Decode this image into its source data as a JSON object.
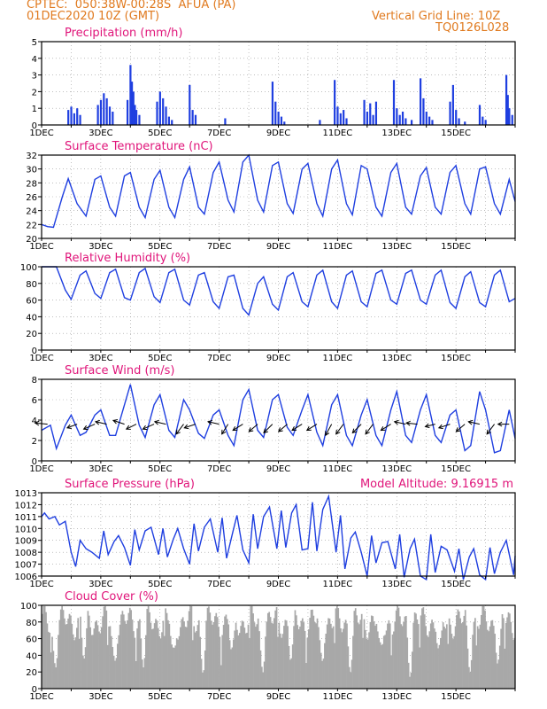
{
  "header": {
    "line1_left": "CPTEC:  050:38W-00:28S  AFUA (PA)",
    "line2_left": "01DEC2020 10Z (GMT)",
    "line1_right": "Vertical Grid Line: 10Z",
    "line2_right": "TQ0126L028"
  },
  "colors": {
    "header": "#e07a1f",
    "title": "#e0157a",
    "series": "#1f3fe0",
    "cloud": "#a8a8a8"
  },
  "x_ticks": [
    "1DEC",
    "3DEC",
    "5DEC",
    "7DEC",
    "9DEC",
    "11DEC",
    "13DEC",
    "15DEC"
  ],
  "chart_data": [
    {
      "id": "precip",
      "type": "bar",
      "title": "Precipitation (mm/h)",
      "ylim": [
        0,
        5
      ],
      "yticks": [
        0,
        1,
        2,
        3,
        4,
        5
      ],
      "note": "hourly spikes, x in days since 1DEC 10Z",
      "x": [
        0.9,
        1.0,
        1.1,
        1.2,
        1.3,
        1.9,
        2.0,
        2.1,
        2.2,
        2.3,
        2.4,
        2.9,
        3.0,
        3.05,
        3.1,
        3.15,
        3.2,
        3.3,
        3.9,
        4.0,
        4.1,
        4.2,
        4.3,
        4.4,
        5.0,
        5.1,
        5.2,
        6.2,
        7.8,
        7.9,
        8.0,
        8.1,
        8.2,
        9.4,
        9.9,
        10.0,
        10.1,
        10.2,
        10.3,
        10.9,
        11.0,
        11.1,
        11.2,
        11.3,
        11.9,
        12.0,
        12.1,
        12.2,
        12.3,
        12.5,
        12.8,
        12.9,
        13.0,
        13.1,
        13.2,
        13.8,
        13.9,
        14.0,
        14.1,
        14.3,
        14.8,
        14.9,
        15.0,
        15.7,
        15.75,
        15.8,
        15.9
      ],
      "values": [
        0.9,
        1.1,
        0.7,
        1.0,
        0.6,
        1.2,
        1.5,
        1.9,
        1.6,
        1.1,
        0.8,
        1.5,
        3.6,
        2.6,
        2.0,
        1.2,
        0.9,
        0.6,
        1.4,
        2.0,
        1.6,
        1.1,
        0.5,
        0.3,
        2.4,
        0.9,
        0.6,
        0.4,
        2.6,
        1.4,
        0.8,
        0.5,
        0.2,
        0.3,
        2.7,
        1.1,
        0.7,
        0.9,
        0.4,
        1.5,
        0.8,
        1.3,
        0.6,
        1.4,
        2.7,
        1.0,
        0.6,
        0.8,
        0.4,
        0.3,
        2.8,
        1.6,
        0.8,
        0.5,
        0.3,
        1.4,
        2.4,
        0.9,
        0.4,
        0.2,
        1.2,
        0.5,
        0.3,
        3.0,
        1.8,
        1.0,
        0.6
      ]
    },
    {
      "id": "temp",
      "type": "line",
      "title": "Surface Temperature (nC)",
      "ylim": [
        20,
        32
      ],
      "yticks": [
        20,
        22,
        24,
        26,
        28,
        30,
        32
      ],
      "x": [
        0.0,
        0.2,
        0.4,
        0.7,
        0.9,
        1.2,
        1.5,
        1.8,
        2.0,
        2.3,
        2.5,
        2.8,
        3.0,
        3.3,
        3.5,
        3.8,
        4.0,
        4.3,
        4.5,
        4.8,
        5.0,
        5.3,
        5.5,
        5.8,
        6.0,
        6.3,
        6.5,
        6.8,
        7.0,
        7.3,
        7.5,
        7.8,
        8.0,
        8.3,
        8.5,
        8.8,
        9.0,
        9.3,
        9.5,
        9.8,
        10.0,
        10.3,
        10.5,
        10.8,
        11.0,
        11.3,
        11.5,
        11.8,
        12.0,
        12.3,
        12.5,
        12.8,
        13.0,
        13.3,
        13.5,
        13.8,
        14.0,
        14.3,
        14.5,
        14.8,
        15.0,
        15.3,
        15.5,
        15.8,
        16.0
      ],
      "values": [
        22.0,
        21.7,
        21.6,
        26.0,
        28.6,
        25.0,
        23.2,
        28.5,
        29.0,
        24.5,
        23.2,
        29.0,
        29.5,
        24.5,
        23.0,
        28.5,
        29.8,
        24.5,
        23.0,
        28.5,
        30.3,
        24.5,
        23.5,
        29.5,
        31.0,
        25.5,
        23.8,
        31.0,
        32.0,
        25.5,
        23.8,
        30.5,
        31.0,
        25.0,
        23.6,
        30.0,
        30.8,
        25.0,
        23.2,
        30.0,
        31.3,
        25.0,
        23.4,
        30.5,
        30.0,
        24.5,
        23.2,
        29.5,
        30.8,
        24.5,
        23.5,
        29.0,
        30.2,
        24.5,
        23.5,
        29.5,
        30.5,
        25.0,
        23.5,
        30.0,
        30.3,
        25.0,
        23.5,
        28.5,
        25.3
      ]
    },
    {
      "id": "rh",
      "type": "line",
      "title": "Relative Humidity (%)",
      "ylim": [
        0,
        100
      ],
      "yticks": [
        0,
        20,
        40,
        60,
        80,
        100
      ],
      "x": [
        0.0,
        0.3,
        0.5,
        0.8,
        1.0,
        1.3,
        1.5,
        1.8,
        2.0,
        2.3,
        2.5,
        2.8,
        3.0,
        3.3,
        3.5,
        3.8,
        4.0,
        4.3,
        4.5,
        4.8,
        5.0,
        5.3,
        5.5,
        5.8,
        6.0,
        6.3,
        6.5,
        6.8,
        7.0,
        7.3,
        7.5,
        7.8,
        8.0,
        8.3,
        8.5,
        8.8,
        9.0,
        9.3,
        9.5,
        9.8,
        10.0,
        10.3,
        10.5,
        10.8,
        11.0,
        11.3,
        11.5,
        11.8,
        12.0,
        12.3,
        12.5,
        12.8,
        13.0,
        13.3,
        13.5,
        13.8,
        14.0,
        14.3,
        14.5,
        14.8,
        15.0,
        15.3,
        15.5,
        15.8,
        16.0
      ],
      "values": [
        100,
        100,
        100,
        72,
        61,
        90,
        95,
        68,
        62,
        93,
        97,
        63,
        60,
        93,
        98,
        64,
        57,
        93,
        97,
        60,
        54,
        90,
        93,
        58,
        50,
        88,
        90,
        50,
        42,
        80,
        88,
        55,
        48,
        88,
        93,
        58,
        52,
        90,
        96,
        58,
        50,
        90,
        95,
        58,
        52,
        92,
        96,
        60,
        55,
        92,
        96,
        60,
        55,
        90,
        96,
        57,
        50,
        88,
        94,
        57,
        52,
        90,
        96,
        58,
        62
      ]
    },
    {
      "id": "wind",
      "type": "line",
      "title": "Surface Wind (m/s)",
      "ylim": [
        0,
        8
      ],
      "yticks": [
        0,
        2,
        4,
        6,
        8
      ],
      "x": [
        0.0,
        0.3,
        0.5,
        0.8,
        1.0,
        1.3,
        1.5,
        1.8,
        2.0,
        2.3,
        2.5,
        2.8,
        3.0,
        3.3,
        3.5,
        3.8,
        4.0,
        4.3,
        4.5,
        4.8,
        5.0,
        5.3,
        5.5,
        5.8,
        6.0,
        6.3,
        6.5,
        6.8,
        7.0,
        7.3,
        7.5,
        7.8,
        8.0,
        8.3,
        8.5,
        8.8,
        9.0,
        9.3,
        9.5,
        9.8,
        10.0,
        10.3,
        10.5,
        10.8,
        11.0,
        11.3,
        11.5,
        11.8,
        12.0,
        12.3,
        12.5,
        12.8,
        13.0,
        13.3,
        13.5,
        13.8,
        14.0,
        14.3,
        14.5,
        14.8,
        15.0,
        15.3,
        15.5,
        15.8,
        16.0
      ],
      "values": [
        3.0,
        3.5,
        1.2,
        3.5,
        4.5,
        2.5,
        2.8,
        4.5,
        5.0,
        2.5,
        2.5,
        5.5,
        7.5,
        3.5,
        2.3,
        5.5,
        6.5,
        3.0,
        2.3,
        6.0,
        5.0,
        2.7,
        2.2,
        4.5,
        5.0,
        2.5,
        1.5,
        6.0,
        7.0,
        3.0,
        2.3,
        6.0,
        6.5,
        3.3,
        2.5,
        5.0,
        6.5,
        2.8,
        1.5,
        5.5,
        6.5,
        2.5,
        1.5,
        4.5,
        6.0,
        2.5,
        1.5,
        5.0,
        6.8,
        2.5,
        1.8,
        5.0,
        6.5,
        2.5,
        1.8,
        4.5,
        5.0,
        1.0,
        1.5,
        6.8,
        5.0,
        0.8,
        1.0,
        5.0,
        2.2
      ],
      "barbs": [
        [
          0.2,
          -1,
          0.1
        ],
        [
          1.2,
          -0.8,
          -0.3
        ],
        [
          1.8,
          -0.9,
          -0.4
        ],
        [
          2.2,
          -0.9,
          0.2
        ],
        [
          2.8,
          -0.9,
          0.3
        ],
        [
          3.2,
          -0.8,
          -0.4
        ],
        [
          3.8,
          -0.9,
          -0.4
        ],
        [
          4.2,
          -0.9,
          0.2
        ],
        [
          4.8,
          -0.6,
          -0.8
        ],
        [
          5.2,
          -0.9,
          -0.3
        ],
        [
          6.0,
          -0.9,
          0.2
        ],
        [
          6.3,
          -0.5,
          -0.8
        ],
        [
          6.8,
          -0.8,
          -0.5
        ],
        [
          7.3,
          -0.7,
          -0.6
        ],
        [
          7.8,
          -0.7,
          -0.7
        ],
        [
          8.3,
          -0.7,
          -0.6
        ],
        [
          8.8,
          -0.8,
          -0.5
        ],
        [
          9.3,
          -0.8,
          -0.5
        ],
        [
          9.8,
          -0.5,
          -0.9
        ],
        [
          10.2,
          -0.6,
          -0.8
        ],
        [
          10.8,
          -0.7,
          -0.7
        ],
        [
          11.2,
          -0.6,
          -0.8
        ],
        [
          11.8,
          -0.8,
          -0.5
        ],
        [
          12.3,
          -0.9,
          0.2
        ],
        [
          12.7,
          -0.9,
          0.1
        ],
        [
          13.3,
          -0.8,
          -0.2
        ],
        [
          13.8,
          -0.9,
          -0.3
        ],
        [
          14.3,
          -0.7,
          -0.6
        ],
        [
          14.8,
          -0.9,
          0.2
        ],
        [
          15.3,
          -0.6,
          -0.8
        ],
        [
          15.8,
          -0.9,
          0.0
        ]
      ]
    },
    {
      "id": "pres",
      "type": "line",
      "title": "Surface Pressure (hPa)",
      "extra_label": "Model Altitude: 9.16915 m",
      "ylim": [
        1006,
        1013
      ],
      "yticks": [
        1006,
        1007,
        1008,
        1009,
        1010,
        1011,
        1012,
        1013
      ],
      "x": [
        0.0,
        0.1,
        0.25,
        0.45,
        0.6,
        0.8,
        1.0,
        1.15,
        1.3,
        1.5,
        1.7,
        1.95,
        2.1,
        2.25,
        2.45,
        2.6,
        2.8,
        3.0,
        3.15,
        3.3,
        3.5,
        3.7,
        3.95,
        4.1,
        4.25,
        4.45,
        4.6,
        4.8,
        5.0,
        5.15,
        5.3,
        5.5,
        5.7,
        5.95,
        6.1,
        6.25,
        6.45,
        6.6,
        6.8,
        7.0,
        7.15,
        7.3,
        7.5,
        7.7,
        7.95,
        8.1,
        8.25,
        8.45,
        8.6,
        8.8,
        9.0,
        9.15,
        9.3,
        9.5,
        9.7,
        9.95,
        10.1,
        10.25,
        10.45,
        10.6,
        10.8,
        11.0,
        11.15,
        11.3,
        11.5,
        11.7,
        11.95,
        12.1,
        12.25,
        12.45,
        12.6,
        12.8,
        13.0,
        13.15,
        13.3,
        13.5,
        13.7,
        13.95,
        14.1,
        14.25,
        14.45,
        14.6,
        14.8,
        15.0,
        15.15,
        15.3,
        15.5,
        15.7,
        15.95,
        16.0
      ],
      "values": [
        1011.0,
        1011.3,
        1010.8,
        1011.0,
        1010.3,
        1010.6,
        1008.0,
        1006.8,
        1009.0,
        1008.3,
        1008.0,
        1007.5,
        1009.8,
        1007.8,
        1008.9,
        1009.4,
        1008.4,
        1006.9,
        1009.9,
        1008.2,
        1009.8,
        1010.1,
        1007.8,
        1010.0,
        1007.6,
        1009.1,
        1010.0,
        1008.3,
        1007.0,
        1010.4,
        1008.1,
        1010.1,
        1010.8,
        1008.0,
        1010.9,
        1007.5,
        1009.6,
        1011.1,
        1008.2,
        1007.1,
        1011.2,
        1008.3,
        1011.0,
        1011.8,
        1008.3,
        1011.5,
        1008.4,
        1011.3,
        1012.0,
        1008.2,
        1008.3,
        1012.2,
        1008.1,
        1011.6,
        1012.7,
        1008.0,
        1011.1,
        1006.6,
        1009.2,
        1009.7,
        1008.0,
        1006.0,
        1009.4,
        1007.1,
        1008.8,
        1008.9,
        1006.6,
        1009.5,
        1005.9,
        1008.3,
        1009.1,
        1006.0,
        1005.5,
        1009.5,
        1006.3,
        1008.5,
        1008.2,
        1006.4,
        1008.3,
        1005.7,
        1007.6,
        1008.3,
        1006.1,
        1005.6,
        1008.4,
        1006.2,
        1008.0,
        1009.0,
        1006.1,
        1007.7
      ]
    },
    {
      "id": "cloud",
      "type": "bar",
      "title": "Cloud Cover (%)",
      "ylim": [
        0,
        100
      ],
      "yticks": [
        0,
        20,
        40,
        60,
        80,
        100
      ]
    }
  ]
}
